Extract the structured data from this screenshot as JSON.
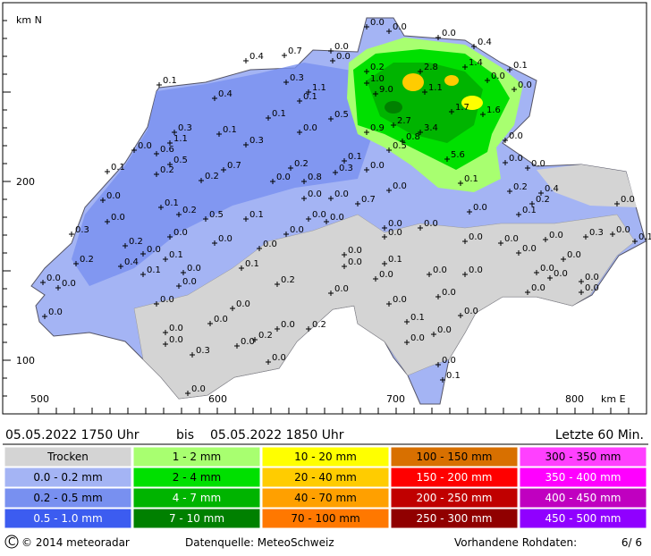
{
  "map": {
    "axis_labels": {
      "north": "km N",
      "east": "km E"
    },
    "y_labels": [
      "200",
      "100"
    ],
    "x_labels": [
      "500",
      "600",
      "700",
      "800"
    ],
    "stations": [
      "0.0",
      "0.0",
      "0.0",
      "0.4",
      "0.0",
      "0.0",
      "0.7",
      "0.4",
      "0.1",
      "0.4",
      "0.3",
      "1.1",
      "0.1",
      "0.2",
      "1.0",
      "2.8",
      "1.4",
      "0.1",
      "0.0",
      "0.0",
      "9.0",
      "1.1",
      "1.7",
      "1.6",
      "0.1",
      "0.5",
      "0.3",
      "1.1",
      "0.6",
      "0.5",
      "0.0",
      "0.1",
      "0.3",
      "0.0",
      "0.9",
      "2.7",
      "3.4",
      "0.8",
      "0.5",
      "0.1",
      "5.6",
      "0.0",
      "0.0",
      "0.0",
      "0.1",
      "0.2",
      "0.2",
      "0.7",
      "0.2",
      "0.0",
      "0.8",
      "0.3",
      "0.0",
      "0.1",
      "0.2",
      "0.4",
      "0.2",
      "0.0",
      "0.0",
      "0.1",
      "0.2",
      "0.5",
      "0.1",
      "0.0",
      "0.0",
      "0.7",
      "0.0",
      "0.0",
      "0.0",
      "0.0",
      "0.1",
      "0.0",
      "0.3",
      "0.0",
      "0.0",
      "0.0",
      "0.0",
      "0.0",
      "0.0",
      "0.0",
      "0.0",
      "0.0",
      "0.0",
      "0.3",
      "0.0",
      "0.1",
      "0.2",
      "0.2",
      "0.4",
      "0.1",
      "0.0",
      "0.1",
      "0.0",
      "0.0",
      "0.1",
      "0.1",
      "0.0",
      "0.0",
      "0.0",
      "0.0",
      "0.0",
      "0.0",
      "0.0",
      "0.0",
      "0.0",
      "0.0",
      "0.0",
      "0.2",
      "0.0",
      "0.0",
      "0.0",
      "0.0",
      "0.0",
      "0.0",
      "0.0",
      "0.0",
      "0.0",
      "0.0",
      "0.0",
      "0.0",
      "0.2",
      "0.1",
      "0.0",
      "0.0",
      "0.2",
      "0.0",
      "0.0",
      "0.0",
      "0.3",
      "0.0",
      "0.0",
      "0.1",
      "0.0"
    ]
  },
  "header": {
    "from": "05.05.2022 1750 Uhr",
    "bis": "bis",
    "to": "05.05.2022 1850 Uhr",
    "period": "Letzte 60 Min."
  },
  "legend": [
    [
      {
        "label": "Trocken",
        "color": "#d4d4d4"
      },
      {
        "label": "0.0 - 0.2 mm",
        "color": "#a4b4f4"
      },
      {
        "label": "0.2 - 0.5 mm",
        "color": "#7890f0"
      },
      {
        "label": "0.5 - 1.0 mm",
        "color": "#3c5cf0"
      }
    ],
    [
      {
        "label": "1 - 2 mm",
        "color": "#a8ff70"
      },
      {
        "label": "2 - 4 mm",
        "color": "#00e000"
      },
      {
        "label": "4 - 7 mm",
        "color": "#00b400"
      },
      {
        "label": "7 - 10 mm",
        "color": "#008000"
      }
    ],
    [
      {
        "label": "10 - 20 mm",
        "color": "#ffff00"
      },
      {
        "label": "20 - 40 mm",
        "color": "#ffcc00"
      },
      {
        "label": "40 - 70 mm",
        "color": "#ffa000"
      },
      {
        "label": "70 - 100 mm",
        "color": "#ff7800"
      }
    ],
    [
      {
        "label": "100 - 150 mm",
        "color": "#d87000"
      },
      {
        "label": "150 - 200 mm",
        "color": "#ff0000"
      },
      {
        "label": "200 - 250 mm",
        "color": "#c00000"
      },
      {
        "label": "250 - 300 mm",
        "color": "#900000"
      }
    ],
    [
      {
        "label": "300 - 350 mm",
        "color": "#ff40ff"
      },
      {
        "label": "350 - 400 mm",
        "color": "#ff00ff"
      },
      {
        "label": "400 - 450 mm",
        "color": "#c000c0"
      },
      {
        "label": "450 - 500 mm",
        "color": "#9000ff"
      }
    ]
  ],
  "footer": {
    "copyright": "© 2014 meteoradar",
    "source": "Datenquelle: MeteoSchweiz",
    "raw": "Vorhandene Rohdaten:",
    "raw_count": "6/ 6"
  }
}
